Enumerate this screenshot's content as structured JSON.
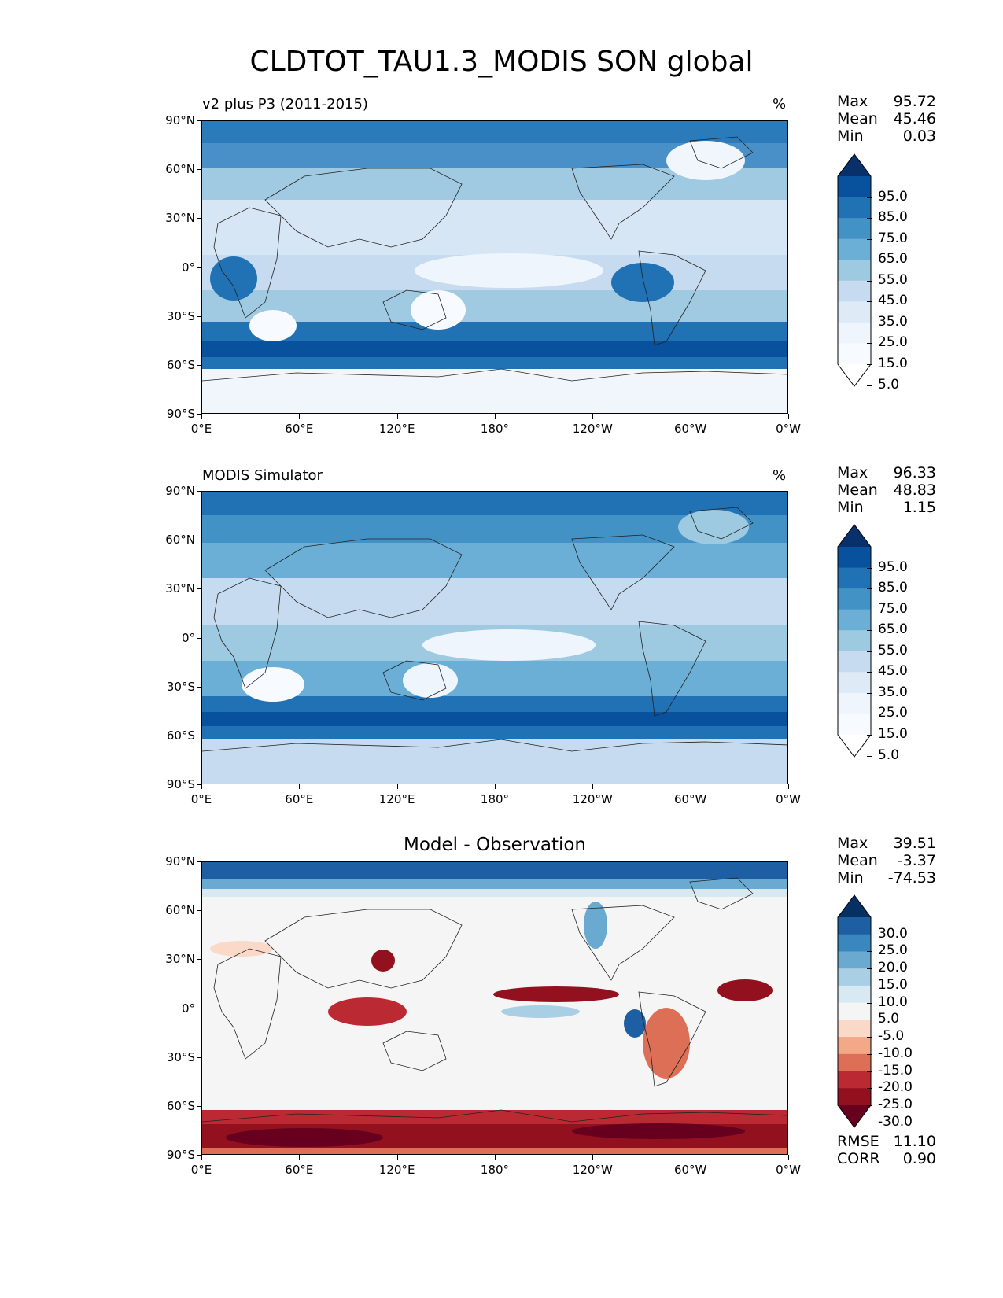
{
  "figure": {
    "title": "CLDTOT_TAU1.3_MODIS SON global"
  },
  "axes": {
    "lat_ticks": [
      "90°N",
      "60°N",
      "30°N",
      "0°",
      "30°S",
      "60°S",
      "90°S"
    ],
    "lon_ticks": [
      "0°E",
      "60°E",
      "120°E",
      "180°",
      "120°W",
      "60°W",
      "0°W"
    ]
  },
  "panels": [
    {
      "title_left": "v2 plus P3 (2011-2015)",
      "title_center": "",
      "units": "%",
      "stats": {
        "max_label": "Max",
        "max": "95.72",
        "mean_label": "Mean",
        "mean": "45.46",
        "min_label": "Min",
        "min": "0.03"
      },
      "colorbar": {
        "labels": [
          "95.0",
          "85.0",
          "75.0",
          "65.0",
          "55.0",
          "45.0",
          "35.0",
          "25.0",
          "15.0",
          "5.0"
        ],
        "colors": [
          "#08306b",
          "#08519c",
          "#2171b5",
          "#4292c6",
          "#6baed6",
          "#9ecae1",
          "#c6dbef",
          "#deebf7",
          "#eef5fc",
          "#f7fbff",
          "#ffffff"
        ]
      }
    },
    {
      "title_left": "MODIS Simulator",
      "title_center": "",
      "units": "%",
      "stats": {
        "max_label": "Max",
        "max": "96.33",
        "mean_label": "Mean",
        "mean": "48.83",
        "min_label": "Min",
        "min": "1.15"
      },
      "colorbar": {
        "labels": [
          "95.0",
          "85.0",
          "75.0",
          "65.0",
          "55.0",
          "45.0",
          "35.0",
          "25.0",
          "15.0",
          "5.0"
        ],
        "colors": [
          "#08306b",
          "#08519c",
          "#2171b5",
          "#4292c6",
          "#6baed6",
          "#9ecae1",
          "#c6dbef",
          "#deebf7",
          "#eef5fc",
          "#f7fbff",
          "#ffffff"
        ]
      }
    },
    {
      "title_left": "",
      "title_center": "Model - Observation",
      "units": "",
      "stats": {
        "max_label": "Max",
        "max": "39.51",
        "mean_label": "Mean",
        "mean": "-3.37",
        "min_label": "Min",
        "min": "-74.53"
      },
      "colorbar": {
        "labels": [
          "30.0",
          "25.0",
          "20.0",
          "15.0",
          "10.0",
          "5.0",
          "-5.0",
          "-10.0",
          "-15.0",
          "-20.0",
          "-25.0",
          "-30.0"
        ],
        "colors": [
          "#053061",
          "#1d5fa2",
          "#3a87bf",
          "#6aaad0",
          "#a9cfe4",
          "#d9e9f2",
          "#f5f5f5",
          "#fbd9c8",
          "#f3a988",
          "#dd6f57",
          "#bb2a33",
          "#93101f",
          "#67001f"
        ]
      },
      "error": {
        "rmse_label": "RMSE",
        "rmse": "11.10",
        "corr_label": "CORR",
        "corr": "0.90"
      }
    }
  ]
}
